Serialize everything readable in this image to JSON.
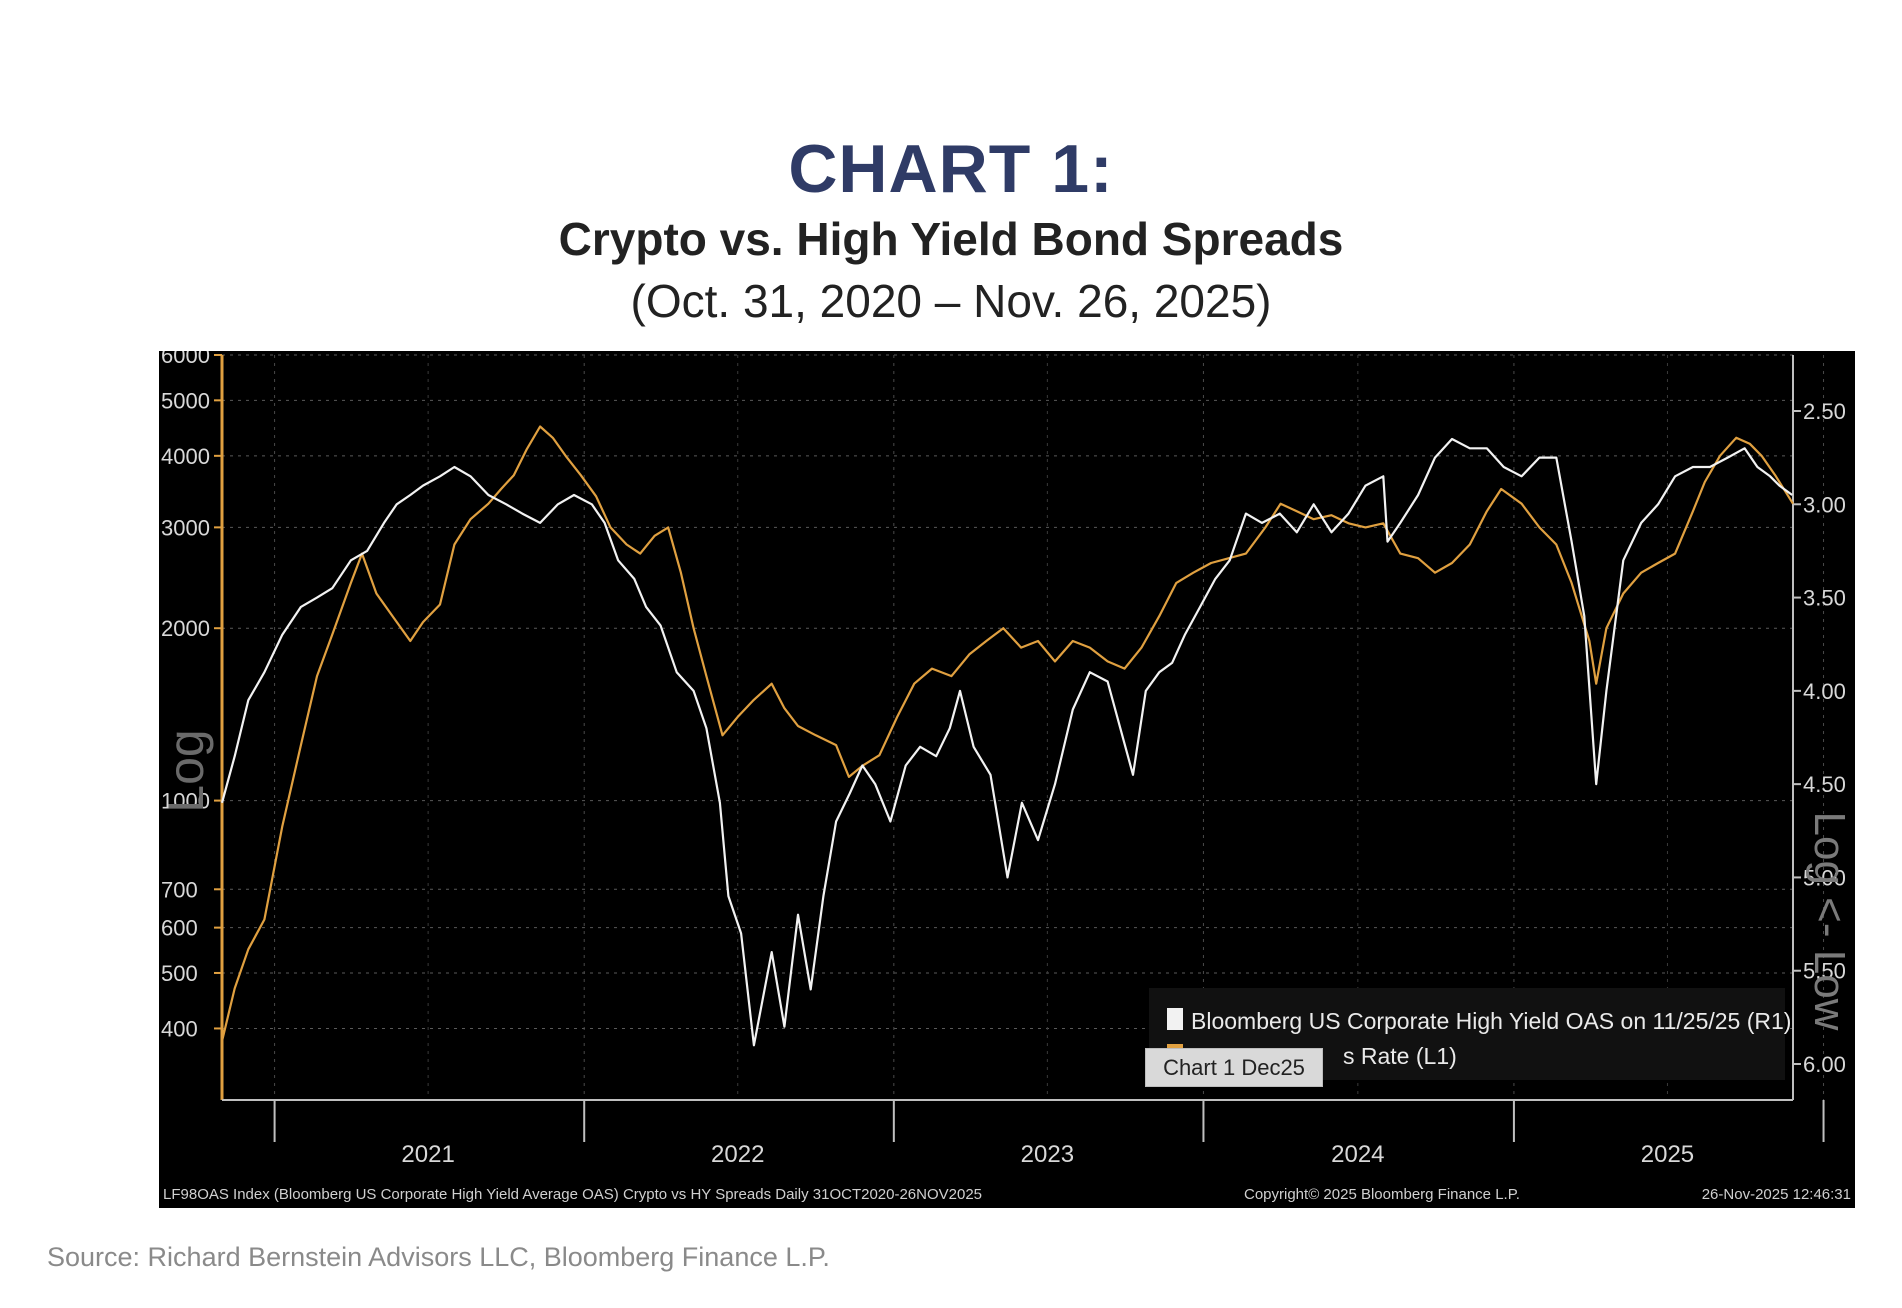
{
  "header": {
    "title": "CHART 1:",
    "subtitle": "Crypto vs. High Yield Bond Spreads",
    "date_range": "(Oct. 31, 2020 – Nov. 26, 2025)"
  },
  "footer": {
    "source": "Source: Richard Bernstein Advisors LLC, Bloomberg Finance L.P.",
    "bloomberg_note": "LF98OAS Index (Bloomberg US Corporate High Yield Average OAS) Crypto vs HY Spreads Daily 31OCT2020-26NOV2025",
    "copyright": "Copyright© 2025 Bloomberg Finance L.P.",
    "timestamp": "26-Nov-2025 12:46:31"
  },
  "tooltip": {
    "text": "Chart 1 Dec25"
  },
  "colors": {
    "hy_spread": "#f2f2f2",
    "crypto": "#e0a040",
    "background": "#000000",
    "title": "#2f3b66"
  },
  "chart_data": {
    "type": "line",
    "title": "Crypto vs. High Yield Bond Spreads",
    "subtitle": "(Oct. 31, 2020 – Nov. 26, 2025)",
    "left_axis": {
      "label": "Log",
      "scale": "log",
      "range": [
        300,
        6000
      ],
      "ticks": [
        400,
        500,
        600,
        700,
        1000,
        2000,
        3000,
        4000,
        5000,
        6000
      ]
    },
    "right_axis": {
      "label": "Log <- Low",
      "scale": "inverted",
      "range": [
        6.0,
        2.5
      ],
      "ticks": [
        2.5,
        3.0,
        3.5,
        4.0,
        4.5,
        5.0,
        5.5,
        6.0
      ],
      "tick_labels": [
        "2.50",
        "3.00",
        "3.50",
        "4.00",
        "4.50",
        "5.00",
        "5.50",
        "6.00"
      ]
    },
    "x_axis": {
      "type": "date",
      "range": [
        "2020-10-31",
        "2025-11-26"
      ],
      "tick_labels": [
        "2021",
        "2022",
        "2023",
        "2024",
        "2025"
      ]
    },
    "grid": true,
    "legend": {
      "placement": "bottom-right",
      "entries": [
        {
          "label": "Bloomberg US Corporate High Yield OAS on 11/25/25 (R1)",
          "color": "#f2f2f2"
        },
        {
          "label": "s Rate (L1)",
          "color": "#e0a040"
        }
      ]
    },
    "series": [
      {
        "name": "Bloomberg US Corporate High Yield OAS on 11/25/25",
        "axis": "right",
        "x": [
          "2020-10-31",
          "2020-11-15",
          "2020-12-01",
          "2020-12-20",
          "2021-01-10",
          "2021-02-01",
          "2021-02-20",
          "2021-03-10",
          "2021-04-01",
          "2021-04-20",
          "2021-05-10",
          "2021-05-25",
          "2021-06-10",
          "2021-06-25",
          "2021-07-15",
          "2021-08-01",
          "2021-08-20",
          "2021-09-10",
          "2021-10-01",
          "2021-10-20",
          "2021-11-10",
          "2021-12-01",
          "2021-12-20",
          "2022-01-10",
          "2022-01-25",
          "2022-02-10",
          "2022-03-01",
          "2022-03-15",
          "2022-04-01",
          "2022-04-20",
          "2022-05-10",
          "2022-05-25",
          "2022-06-10",
          "2022-06-20",
          "2022-07-05",
          "2022-07-20",
          "2022-08-10",
          "2022-08-25",
          "2022-09-10",
          "2022-09-25",
          "2022-10-10",
          "2022-10-25",
          "2022-11-10",
          "2022-11-25",
          "2022-12-10",
          "2022-12-28",
          "2023-01-15",
          "2023-02-01",
          "2023-02-20",
          "2023-03-08",
          "2023-03-20",
          "2023-04-05",
          "2023-04-25",
          "2023-05-15",
          "2023-06-01",
          "2023-06-20",
          "2023-07-10",
          "2023-07-31",
          "2023-08-20",
          "2023-09-10",
          "2023-09-25",
          "2023-10-10",
          "2023-10-25",
          "2023-11-10",
          "2023-11-25",
          "2023-12-10",
          "2023-12-28",
          "2024-01-15",
          "2024-02-01",
          "2024-02-20",
          "2024-03-10",
          "2024-03-31",
          "2024-04-20",
          "2024-05-10",
          "2024-05-31",
          "2024-06-20",
          "2024-07-10",
          "2024-07-31",
          "2024-08-05",
          "2024-08-20",
          "2024-09-10",
          "2024-09-30",
          "2024-10-20",
          "2024-11-10",
          "2024-11-30",
          "2024-12-20",
          "2025-01-10",
          "2025-01-31",
          "2025-02-20",
          "2025-03-10",
          "2025-03-25",
          "2025-04-08",
          "2025-04-20",
          "2025-05-10",
          "2025-05-31",
          "2025-06-20",
          "2025-07-10",
          "2025-07-31",
          "2025-08-20",
          "2025-09-10",
          "2025-09-30",
          "2025-10-15",
          "2025-10-30",
          "2025-11-10",
          "2025-11-25"
        ],
        "values": [
          4.6,
          4.35,
          4.05,
          3.9,
          3.7,
          3.55,
          3.5,
          3.45,
          3.3,
          3.25,
          3.1,
          3.0,
          2.95,
          2.9,
          2.85,
          2.8,
          2.85,
          2.95,
          3.0,
          3.05,
          3.1,
          3.0,
          2.95,
          3.0,
          3.1,
          3.3,
          3.4,
          3.55,
          3.65,
          3.9,
          4.0,
          4.2,
          4.6,
          5.1,
          5.3,
          5.9,
          5.4,
          5.8,
          5.2,
          5.6,
          5.1,
          4.7,
          4.55,
          4.4,
          4.5,
          4.7,
          4.4,
          4.3,
          4.35,
          4.2,
          4.0,
          4.3,
          4.45,
          5.0,
          4.6,
          4.8,
          4.5,
          4.1,
          3.9,
          3.95,
          4.2,
          4.45,
          4.0,
          3.9,
          3.85,
          3.7,
          3.55,
          3.4,
          3.3,
          3.05,
          3.1,
          3.05,
          3.15,
          3.0,
          3.15,
          3.05,
          2.9,
          2.85,
          3.2,
          3.1,
          2.95,
          2.75,
          2.65,
          2.7,
          2.7,
          2.8,
          2.85,
          2.75,
          2.75,
          3.2,
          3.6,
          4.5,
          4.0,
          3.3,
          3.1,
          3.0,
          2.85,
          2.8,
          2.8,
          2.75,
          2.7,
          2.8,
          2.85,
          2.9,
          2.95
        ]
      },
      {
        "name": "s Rate",
        "axis": "left",
        "x": [
          "2020-10-31",
          "2020-11-15",
          "2020-12-01",
          "2020-12-20",
          "2021-01-10",
          "2021-02-01",
          "2021-02-20",
          "2021-03-10",
          "2021-04-01",
          "2021-04-14",
          "2021-05-01",
          "2021-05-20",
          "2021-06-10",
          "2021-06-25",
          "2021-07-15",
          "2021-08-01",
          "2021-08-20",
          "2021-09-10",
          "2021-09-25",
          "2021-10-10",
          "2021-10-25",
          "2021-11-10",
          "2021-11-25",
          "2021-12-10",
          "2021-12-28",
          "2022-01-15",
          "2022-02-01",
          "2022-02-20",
          "2022-03-08",
          "2022-03-25",
          "2022-04-10",
          "2022-04-25",
          "2022-05-10",
          "2022-05-25",
          "2022-06-13",
          "2022-07-01",
          "2022-07-20",
          "2022-08-10",
          "2022-08-25",
          "2022-09-10",
          "2022-10-01",
          "2022-10-25",
          "2022-11-09",
          "2022-11-25",
          "2022-12-15",
          "2023-01-05",
          "2023-01-25",
          "2023-02-15",
          "2023-03-10",
          "2023-03-31",
          "2023-04-20",
          "2023-05-10",
          "2023-05-31",
          "2023-06-20",
          "2023-07-10",
          "2023-07-31",
          "2023-08-20",
          "2023-09-10",
          "2023-09-30",
          "2023-10-20",
          "2023-11-10",
          "2023-11-30",
          "2023-12-20",
          "2024-01-10",
          "2024-01-31",
          "2024-02-20",
          "2024-03-14",
          "2024-04-01",
          "2024-04-20",
          "2024-05-10",
          "2024-05-31",
          "2024-06-20",
          "2024-07-10",
          "2024-07-31",
          "2024-08-20",
          "2024-09-10",
          "2024-09-30",
          "2024-10-20",
          "2024-11-10",
          "2024-11-30",
          "2024-12-17",
          "2025-01-10",
          "2025-01-31",
          "2025-02-20",
          "2025-03-10",
          "2025-03-31",
          "2025-04-08",
          "2025-04-20",
          "2025-05-10",
          "2025-05-31",
          "2025-06-20",
          "2025-07-10",
          "2025-07-31",
          "2025-08-14",
          "2025-09-01",
          "2025-09-20",
          "2025-10-06",
          "2025-10-20",
          "2025-11-05",
          "2025-11-26"
        ],
        "values": [
          380,
          470,
          550,
          620,
          900,
          1250,
          1650,
          1950,
          2400,
          2700,
          2300,
          2100,
          1900,
          2050,
          2200,
          2800,
          3100,
          3300,
          3500,
          3700,
          4100,
          4500,
          4300,
          4000,
          3700,
          3400,
          3000,
          2800,
          2700,
          2900,
          3000,
          2500,
          2000,
          1650,
          1300,
          1400,
          1500,
          1600,
          1450,
          1350,
          1300,
          1250,
          1100,
          1150,
          1200,
          1400,
          1600,
          1700,
          1650,
          1800,
          1900,
          2000,
          1850,
          1900,
          1750,
          1900,
          1850,
          1750,
          1700,
          1850,
          2100,
          2400,
          2500,
          2600,
          2650,
          2700,
          3000,
          3300,
          3200,
          3100,
          3150,
          3050,
          3000,
          3050,
          2700,
          2650,
          2500,
          2600,
          2800,
          3200,
          3500,
          3300,
          3000,
          2800,
          2400,
          1900,
          1600,
          2000,
          2300,
          2500,
          2600,
          2700,
          3200,
          3600,
          4000,
          4300,
          4200,
          4000,
          3700,
          3300
        ]
      }
    ]
  }
}
